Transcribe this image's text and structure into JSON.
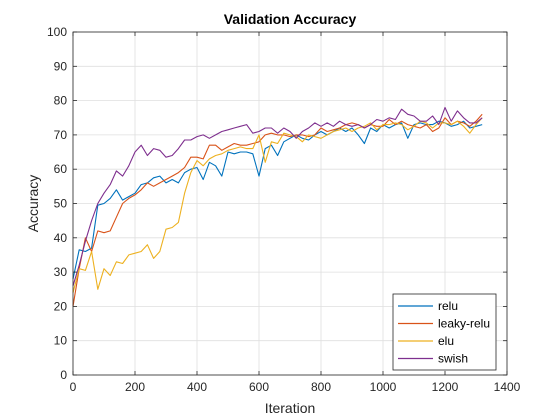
{
  "chart_data": {
    "type": "line",
    "title": "Validation Accuracy",
    "xlabel": "Iteration",
    "ylabel": "Accuracy",
    "xlim": [
      0,
      1400
    ],
    "ylim": [
      0,
      100
    ],
    "xticks": [
      0,
      200,
      400,
      600,
      800,
      1000,
      1200,
      1400
    ],
    "yticks": [
      0,
      10,
      20,
      30,
      40,
      50,
      60,
      70,
      80,
      90,
      100
    ],
    "grid": true,
    "legend_position": "bottom-right",
    "series": [
      {
        "name": "relu",
        "color": "#0072BD",
        "x": [
          0,
          20,
          40,
          60,
          80,
          100,
          120,
          140,
          160,
          180,
          200,
          220,
          240,
          260,
          280,
          300,
          320,
          340,
          360,
          380,
          400,
          420,
          440,
          460,
          480,
          500,
          520,
          540,
          560,
          580,
          600,
          620,
          640,
          660,
          680,
          700,
          720,
          740,
          760,
          780,
          800,
          820,
          840,
          860,
          880,
          900,
          920,
          940,
          960,
          980,
          1000,
          1020,
          1040,
          1060,
          1080,
          1100,
          1120,
          1140,
          1160,
          1180,
          1200,
          1220,
          1240,
          1260,
          1280,
          1300,
          1320
        ],
        "y": [
          28,
          36.5,
          36,
          37,
          49.5,
          50,
          51.5,
          54,
          51,
          52,
          53,
          55.5,
          56,
          57.5,
          58,
          56,
          57,
          56,
          59,
          60,
          60.5,
          57,
          62,
          61,
          58,
          65,
          64.5,
          65,
          65,
          64.5,
          58,
          66,
          67,
          64,
          68,
          69,
          70,
          69,
          68.5,
          70,
          71,
          70,
          71,
          72,
          71,
          72,
          70,
          67.5,
          72,
          71,
          73,
          72,
          73,
          73.5,
          69,
          73,
          73.5,
          73,
          73,
          74,
          73.5,
          72.5,
          73,
          74,
          72,
          72.5,
          73
        ]
      },
      {
        "name": "leaky-relu",
        "color": "#D95319",
        "x": [
          0,
          20,
          40,
          60,
          80,
          100,
          120,
          140,
          160,
          180,
          200,
          220,
          240,
          260,
          280,
          300,
          320,
          340,
          360,
          380,
          400,
          420,
          440,
          460,
          480,
          500,
          520,
          540,
          560,
          580,
          600,
          620,
          640,
          660,
          680,
          700,
          720,
          740,
          760,
          780,
          800,
          820,
          840,
          860,
          880,
          900,
          920,
          940,
          960,
          980,
          1000,
          1020,
          1040,
          1060,
          1080,
          1100,
          1120,
          1140,
          1160,
          1180,
          1200,
          1220,
          1240,
          1260,
          1280,
          1300,
          1320
        ],
        "y": [
          20,
          31,
          40,
          36,
          42,
          41.5,
          42,
          46,
          50,
          51.5,
          52.5,
          54,
          56,
          55,
          56,
          57,
          58,
          59,
          60.5,
          63.5,
          63.5,
          63,
          67,
          67,
          65.5,
          66.5,
          67.5,
          67,
          67,
          67.5,
          68,
          70,
          70.5,
          70,
          70,
          69.5,
          70,
          70,
          69.5,
          70,
          72,
          71,
          71.5,
          72,
          73,
          73.5,
          73,
          72,
          73,
          72.5,
          72.5,
          74.5,
          73,
          74,
          73,
          72.5,
          72,
          73,
          71,
          72,
          75,
          73,
          74,
          73.5,
          72.5,
          74,
          76
        ]
      },
      {
        "name": "elu",
        "color": "#EDB120",
        "x": [
          0,
          20,
          40,
          60,
          80,
          100,
          120,
          140,
          160,
          180,
          200,
          220,
          240,
          260,
          280,
          300,
          320,
          340,
          360,
          380,
          400,
          420,
          440,
          460,
          480,
          500,
          520,
          540,
          560,
          580,
          600,
          620,
          640,
          660,
          680,
          700,
          720,
          740,
          760,
          780,
          800,
          820,
          840,
          860,
          880,
          900,
          920,
          940,
          960,
          980,
          1000,
          1020,
          1040,
          1060,
          1080,
          1100,
          1120,
          1140,
          1160,
          1180,
          1200,
          1220,
          1240,
          1260,
          1280,
          1300,
          1320
        ],
        "y": [
          24,
          31,
          30.5,
          36,
          25,
          31,
          29,
          33,
          32.5,
          35,
          35.5,
          36,
          38,
          34,
          36,
          42.5,
          43,
          44.5,
          53,
          59,
          62.5,
          61,
          63,
          64,
          64.5,
          65.5,
          66,
          66.5,
          66,
          66,
          70,
          62,
          68,
          67.5,
          70.5,
          70,
          69.5,
          68,
          70,
          69.5,
          69,
          70,
          71,
          71.5,
          72,
          71,
          72,
          72.5,
          73.5,
          71.5,
          73,
          73,
          73.5,
          73,
          71.5,
          72.5,
          74,
          73.5,
          72,
          73.5,
          73.5,
          73,
          74,
          72.5,
          70.5,
          73,
          75
        ]
      },
      {
        "name": "swish",
        "color": "#7E2F8E",
        "x": [
          0,
          20,
          40,
          60,
          80,
          100,
          120,
          140,
          160,
          180,
          200,
          220,
          240,
          260,
          280,
          300,
          320,
          340,
          360,
          380,
          400,
          420,
          440,
          460,
          480,
          500,
          520,
          540,
          560,
          580,
          600,
          620,
          640,
          660,
          680,
          700,
          720,
          740,
          760,
          780,
          800,
          820,
          840,
          860,
          880,
          900,
          920,
          940,
          960,
          980,
          1000,
          1020,
          1040,
          1060,
          1080,
          1100,
          1120,
          1140,
          1160,
          1180,
          1200,
          1220,
          1240,
          1260,
          1280,
          1300,
          1320
        ],
        "y": [
          26,
          32,
          39,
          45,
          50,
          53,
          55.5,
          59.5,
          58,
          61,
          65,
          67,
          64,
          66,
          65.5,
          63.5,
          64,
          66,
          68.5,
          68.5,
          69.5,
          70,
          69,
          70,
          71,
          71.5,
          72,
          72.5,
          73,
          70.5,
          71,
          72,
          72,
          70.5,
          72,
          71,
          69,
          71,
          72,
          73.5,
          72.5,
          73.5,
          72.5,
          74,
          73,
          72.5,
          73,
          72,
          73,
          74.5,
          74,
          75,
          74.5,
          77.5,
          76,
          75.5,
          74,
          74,
          75.5,
          73,
          78,
          74,
          77,
          75,
          73.5,
          73.5,
          75
        ]
      }
    ]
  }
}
